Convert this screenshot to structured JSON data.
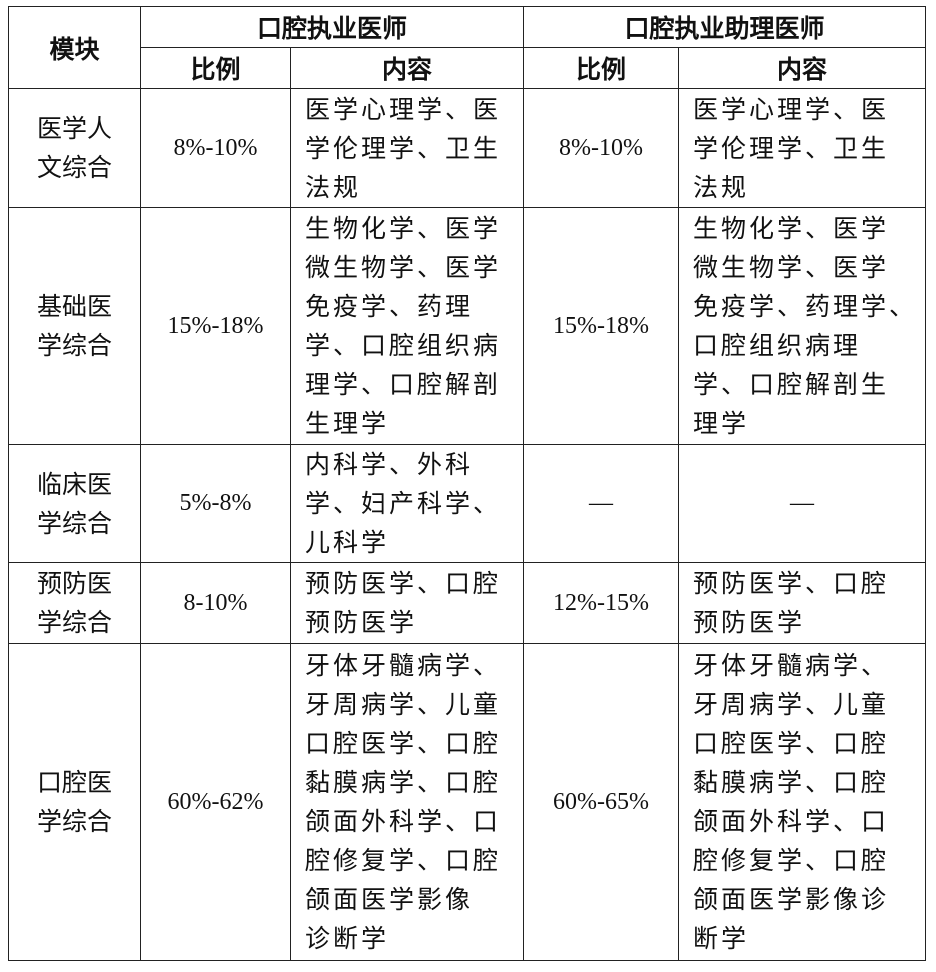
{
  "header": {
    "module": "模块",
    "group1": "口腔执业医师",
    "group2": "口腔执业助理医师",
    "ratio": "比例",
    "content": "内容"
  },
  "rows": [
    {
      "module": "医学人\n文综合",
      "r1": "8%-10%",
      "c1": "医学心理学、医\n学伦理学、卫生\n法规",
      "r2": "8%-10%",
      "c2": "医学心理学、医\n学伦理学、卫生\n法规"
    },
    {
      "module": "基础医\n学综合",
      "r1": "15%-18%",
      "c1": "生物化学、医学\n微生物学、医学\n免疫学、药理\n学、口腔组织病\n理学、口腔解剖\n生理学",
      "r2": "15%-18%",
      "c2": "生物化学、医学\n微生物学、医学\n免疫学、药理学、\n口腔组织病理\n学、口腔解剖生\n理学"
    },
    {
      "module": "临床医\n学综合",
      "r1": "5%-8%",
      "c1": "内科学、外科\n学、妇产科学、\n儿科学",
      "r2": "—",
      "c2": "—"
    },
    {
      "module": "预防医\n学综合",
      "r1": "8-10%",
      "c1": "预防医学、口腔\n预防医学",
      "r2": "12%-15%",
      "c2": "预防医学、口腔\n预防医学"
    },
    {
      "module": "口腔医\n学综合",
      "r1": "60%-62%",
      "c1": "牙体牙髓病学、\n牙周病学、儿童\n口腔医学、口腔\n黏膜病学、口腔\n颌面外科学、口\n腔修复学、口腔\n颌面医学影像\n诊断学",
      "r2": "60%-65%",
      "c2": "牙体牙髓病学、\n牙周病学、儿童\n口腔医学、口腔\n黏膜病学、口腔\n颌面外科学、口\n腔修复学、口腔\n颌面医学影像诊\n断学"
    }
  ]
}
